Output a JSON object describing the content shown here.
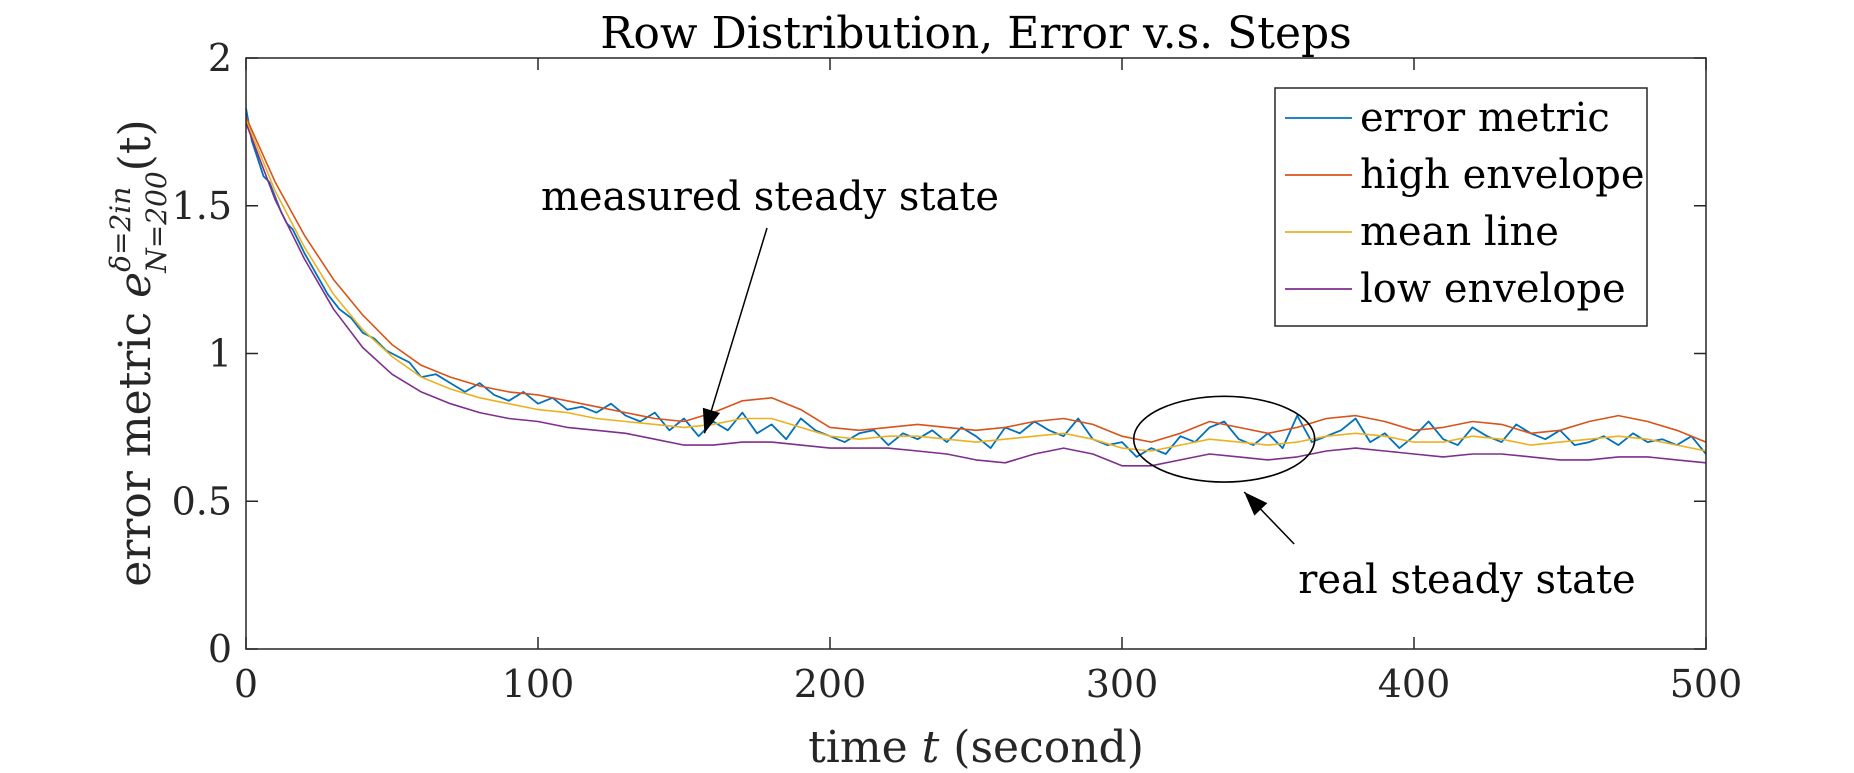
{
  "chart_data": {
    "type": "line",
    "title": "Row Distribution, Error v.s. Steps",
    "xlabel_parts": {
      "pre": "time ",
      "var": "t",
      "post": " (second)"
    },
    "ylabel_parts": {
      "pre": "error metric ",
      "sym": "e",
      "sup": "δ=2in",
      "sub": "N=200",
      "post": "(t)"
    },
    "xlim": [
      0,
      500
    ],
    "ylim": [
      0,
      2
    ],
    "xticks": [
      0,
      100,
      200,
      300,
      400,
      500
    ],
    "xtick_labels": [
      "0",
      "100",
      "200",
      "300",
      "400",
      "500"
    ],
    "yticks": [
      0,
      0.5,
      1,
      1.5,
      2
    ],
    "ytick_labels": [
      "0",
      "0.5",
      "1",
      "1.5",
      "2"
    ],
    "grid": false,
    "legend_position": "top-right",
    "series": [
      {
        "name": "error metric",
        "color": "#0072BD",
        "x": [
          0,
          2,
          4,
          6,
          8,
          10,
          12,
          14,
          16,
          18,
          20,
          24,
          28,
          32,
          36,
          40,
          44,
          48,
          52,
          56,
          60,
          65,
          70,
          75,
          80,
          85,
          90,
          95,
          100,
          105,
          110,
          115,
          120,
          125,
          130,
          135,
          140,
          145,
          150,
          155,
          160,
          165,
          170,
          175,
          180,
          185,
          190,
          195,
          200,
          205,
          210,
          215,
          220,
          225,
          230,
          235,
          240,
          245,
          250,
          255,
          260,
          265,
          270,
          275,
          280,
          285,
          290,
          295,
          300,
          305,
          310,
          315,
          320,
          325,
          330,
          335,
          340,
          345,
          350,
          355,
          360,
          365,
          370,
          375,
          380,
          385,
          390,
          395,
          400,
          405,
          410,
          415,
          420,
          425,
          430,
          435,
          440,
          445,
          450,
          455,
          460,
          465,
          470,
          475,
          480,
          485,
          490,
          495,
          500
        ],
        "y": [
          1.83,
          1.72,
          1.66,
          1.6,
          1.58,
          1.53,
          1.48,
          1.44,
          1.42,
          1.38,
          1.34,
          1.27,
          1.2,
          1.15,
          1.12,
          1.07,
          1.05,
          1.01,
          0.99,
          0.97,
          0.92,
          0.93,
          0.9,
          0.87,
          0.9,
          0.86,
          0.84,
          0.87,
          0.83,
          0.85,
          0.81,
          0.82,
          0.8,
          0.83,
          0.79,
          0.77,
          0.8,
          0.74,
          0.78,
          0.72,
          0.77,
          0.74,
          0.8,
          0.73,
          0.76,
          0.71,
          0.78,
          0.74,
          0.72,
          0.7,
          0.73,
          0.74,
          0.69,
          0.73,
          0.71,
          0.74,
          0.7,
          0.75,
          0.72,
          0.68,
          0.75,
          0.73,
          0.77,
          0.74,
          0.72,
          0.78,
          0.71,
          0.69,
          0.7,
          0.65,
          0.68,
          0.66,
          0.72,
          0.7,
          0.75,
          0.77,
          0.71,
          0.69,
          0.73,
          0.68,
          0.79,
          0.7,
          0.72,
          0.74,
          0.78,
          0.7,
          0.73,
          0.68,
          0.72,
          0.77,
          0.71,
          0.69,
          0.75,
          0.72,
          0.7,
          0.76,
          0.73,
          0.71,
          0.74,
          0.69,
          0.7,
          0.72,
          0.69,
          0.73,
          0.7,
          0.71,
          0.69,
          0.72,
          0.66
        ]
      },
      {
        "name": "high envelope",
        "color": "#D95319",
        "x": [
          0,
          10,
          20,
          30,
          40,
          50,
          60,
          70,
          80,
          90,
          100,
          110,
          120,
          130,
          140,
          150,
          160,
          170,
          180,
          190,
          200,
          210,
          220,
          230,
          240,
          250,
          260,
          270,
          280,
          290,
          300,
          310,
          320,
          330,
          340,
          350,
          360,
          370,
          380,
          390,
          400,
          410,
          420,
          430,
          440,
          450,
          460,
          470,
          480,
          490,
          500
        ],
        "y": [
          1.8,
          1.58,
          1.4,
          1.25,
          1.13,
          1.03,
          0.96,
          0.92,
          0.89,
          0.87,
          0.86,
          0.84,
          0.82,
          0.8,
          0.78,
          0.77,
          0.8,
          0.84,
          0.85,
          0.81,
          0.75,
          0.74,
          0.75,
          0.76,
          0.75,
          0.74,
          0.75,
          0.77,
          0.78,
          0.76,
          0.72,
          0.7,
          0.73,
          0.77,
          0.75,
          0.73,
          0.75,
          0.78,
          0.79,
          0.77,
          0.74,
          0.75,
          0.77,
          0.76,
          0.73,
          0.74,
          0.77,
          0.79,
          0.77,
          0.74,
          0.7
        ]
      },
      {
        "name": "mean line",
        "color": "#EDB120",
        "x": [
          0,
          10,
          20,
          30,
          40,
          50,
          60,
          70,
          80,
          90,
          100,
          110,
          120,
          130,
          140,
          150,
          160,
          170,
          180,
          190,
          200,
          210,
          220,
          230,
          240,
          250,
          260,
          270,
          280,
          290,
          300,
          310,
          320,
          330,
          340,
          350,
          360,
          370,
          380,
          390,
          400,
          410,
          420,
          430,
          440,
          450,
          460,
          470,
          480,
          490,
          500
        ],
        "y": [
          1.79,
          1.55,
          1.36,
          1.2,
          1.08,
          0.99,
          0.92,
          0.88,
          0.85,
          0.83,
          0.81,
          0.8,
          0.78,
          0.77,
          0.76,
          0.75,
          0.76,
          0.78,
          0.78,
          0.75,
          0.72,
          0.71,
          0.72,
          0.72,
          0.71,
          0.7,
          0.71,
          0.72,
          0.73,
          0.71,
          0.68,
          0.67,
          0.69,
          0.71,
          0.7,
          0.69,
          0.7,
          0.72,
          0.73,
          0.72,
          0.7,
          0.7,
          0.72,
          0.71,
          0.69,
          0.7,
          0.71,
          0.72,
          0.71,
          0.69,
          0.67
        ]
      },
      {
        "name": "low envelope",
        "color": "#7E2F8E",
        "x": [
          0,
          10,
          20,
          30,
          40,
          50,
          60,
          70,
          80,
          90,
          100,
          110,
          120,
          130,
          140,
          150,
          160,
          170,
          180,
          190,
          200,
          210,
          220,
          230,
          240,
          250,
          260,
          270,
          280,
          290,
          300,
          310,
          320,
          330,
          340,
          350,
          360,
          370,
          380,
          390,
          400,
          410,
          420,
          430,
          440,
          450,
          460,
          470,
          480,
          490,
          500
        ],
        "y": [
          1.78,
          1.52,
          1.32,
          1.15,
          1.02,
          0.93,
          0.87,
          0.83,
          0.8,
          0.78,
          0.77,
          0.75,
          0.74,
          0.73,
          0.71,
          0.69,
          0.69,
          0.7,
          0.7,
          0.69,
          0.68,
          0.68,
          0.68,
          0.67,
          0.66,
          0.64,
          0.63,
          0.66,
          0.68,
          0.66,
          0.62,
          0.62,
          0.64,
          0.66,
          0.65,
          0.64,
          0.65,
          0.67,
          0.68,
          0.67,
          0.66,
          0.65,
          0.66,
          0.66,
          0.65,
          0.64,
          0.64,
          0.65,
          0.65,
          0.64,
          0.63
        ]
      }
    ],
    "annotations": [
      {
        "text": "measured steady state",
        "arrow_to": [
          157,
          0.73
        ]
      },
      {
        "text": "real steady state",
        "ellipse_center": [
          335,
          0.71
        ],
        "ellipse_rx": 31,
        "ellipse_ry": 0.145
      }
    ]
  }
}
